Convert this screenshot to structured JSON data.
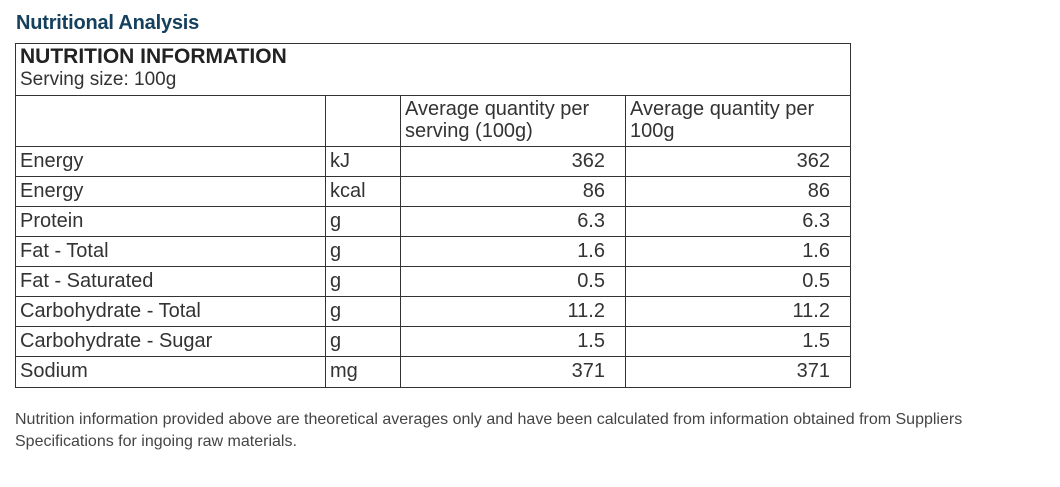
{
  "heading": "Nutritional Analysis",
  "panel": {
    "title": "NUTRITION INFORMATION",
    "serving": "Serving size: 100g",
    "col_per_serving": "Average quantity per serving (100g)",
    "col_per_100g": "Average quantity per 100g",
    "rows": [
      {
        "name": "Energy",
        "unit": "kJ",
        "per_serving": "362",
        "per_100g": "362"
      },
      {
        "name": "Energy",
        "unit": "kcal",
        "per_serving": "86",
        "per_100g": "86"
      },
      {
        "name": "Protein",
        "unit": "g",
        "per_serving": "6.3",
        "per_100g": "6.3"
      },
      {
        "name": "Fat - Total",
        "unit": "g",
        "per_serving": "1.6",
        "per_100g": "1.6"
      },
      {
        "name": "Fat - Saturated",
        "unit": "g",
        "per_serving": "0.5",
        "per_100g": "0.5"
      },
      {
        "name": "Carbohydrate - Total",
        "unit": "g",
        "per_serving": "11.2",
        "per_100g": "11.2"
      },
      {
        "name": "Carbohydrate - Sugar",
        "unit": "g",
        "per_serving": "1.5",
        "per_100g": "1.5"
      },
      {
        "name": "Sodium",
        "unit": "mg",
        "per_serving": "371",
        "per_100g": "371"
      }
    ]
  },
  "footnote": "Nutrition information provided above are theoretical averages only and have been calculated from information obtained from Suppliers Specifications for ingoing raw materials.",
  "colors": {
    "heading": "#14405e",
    "border": "#333333"
  }
}
